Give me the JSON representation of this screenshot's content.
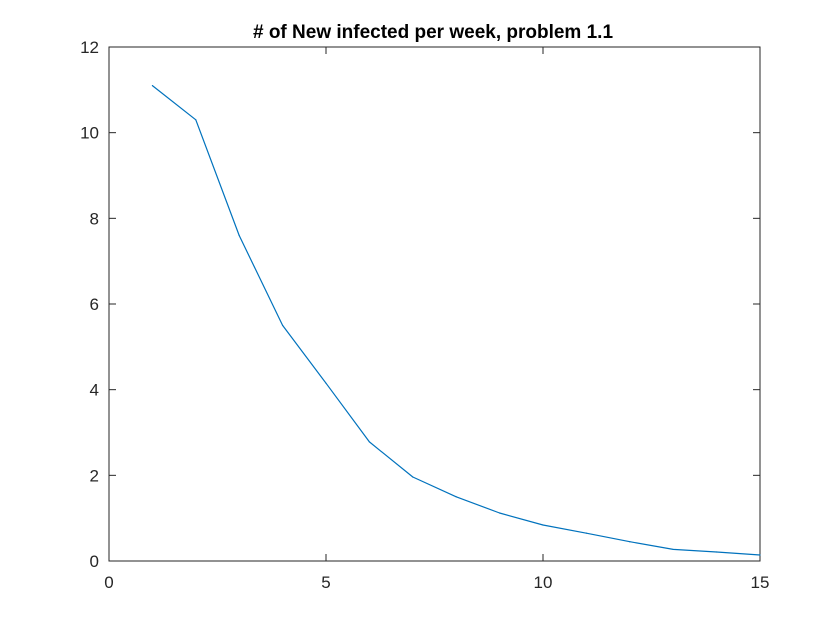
{
  "chart_data": {
    "type": "line",
    "title": "# of New infected per week, problem 1.1",
    "xlabel": "",
    "ylabel": "",
    "xlim": [
      0,
      15
    ],
    "ylim": [
      0,
      12
    ],
    "xticks": [
      0,
      5,
      10,
      15
    ],
    "yticks": [
      0,
      2,
      4,
      6,
      8,
      10,
      12
    ],
    "grid": false,
    "legend": "none",
    "series": [
      {
        "color": "#0072BD",
        "x": [
          1,
          2,
          3,
          4,
          5,
          6,
          7,
          8,
          9,
          10,
          11,
          12,
          13,
          14,
          15
        ],
        "y": [
          11.1,
          10.3,
          7.6,
          5.5,
          4.15,
          2.78,
          1.96,
          1.5,
          1.12,
          0.84,
          0.65,
          0.45,
          0.27,
          0.21,
          0.14
        ]
      }
    ]
  }
}
